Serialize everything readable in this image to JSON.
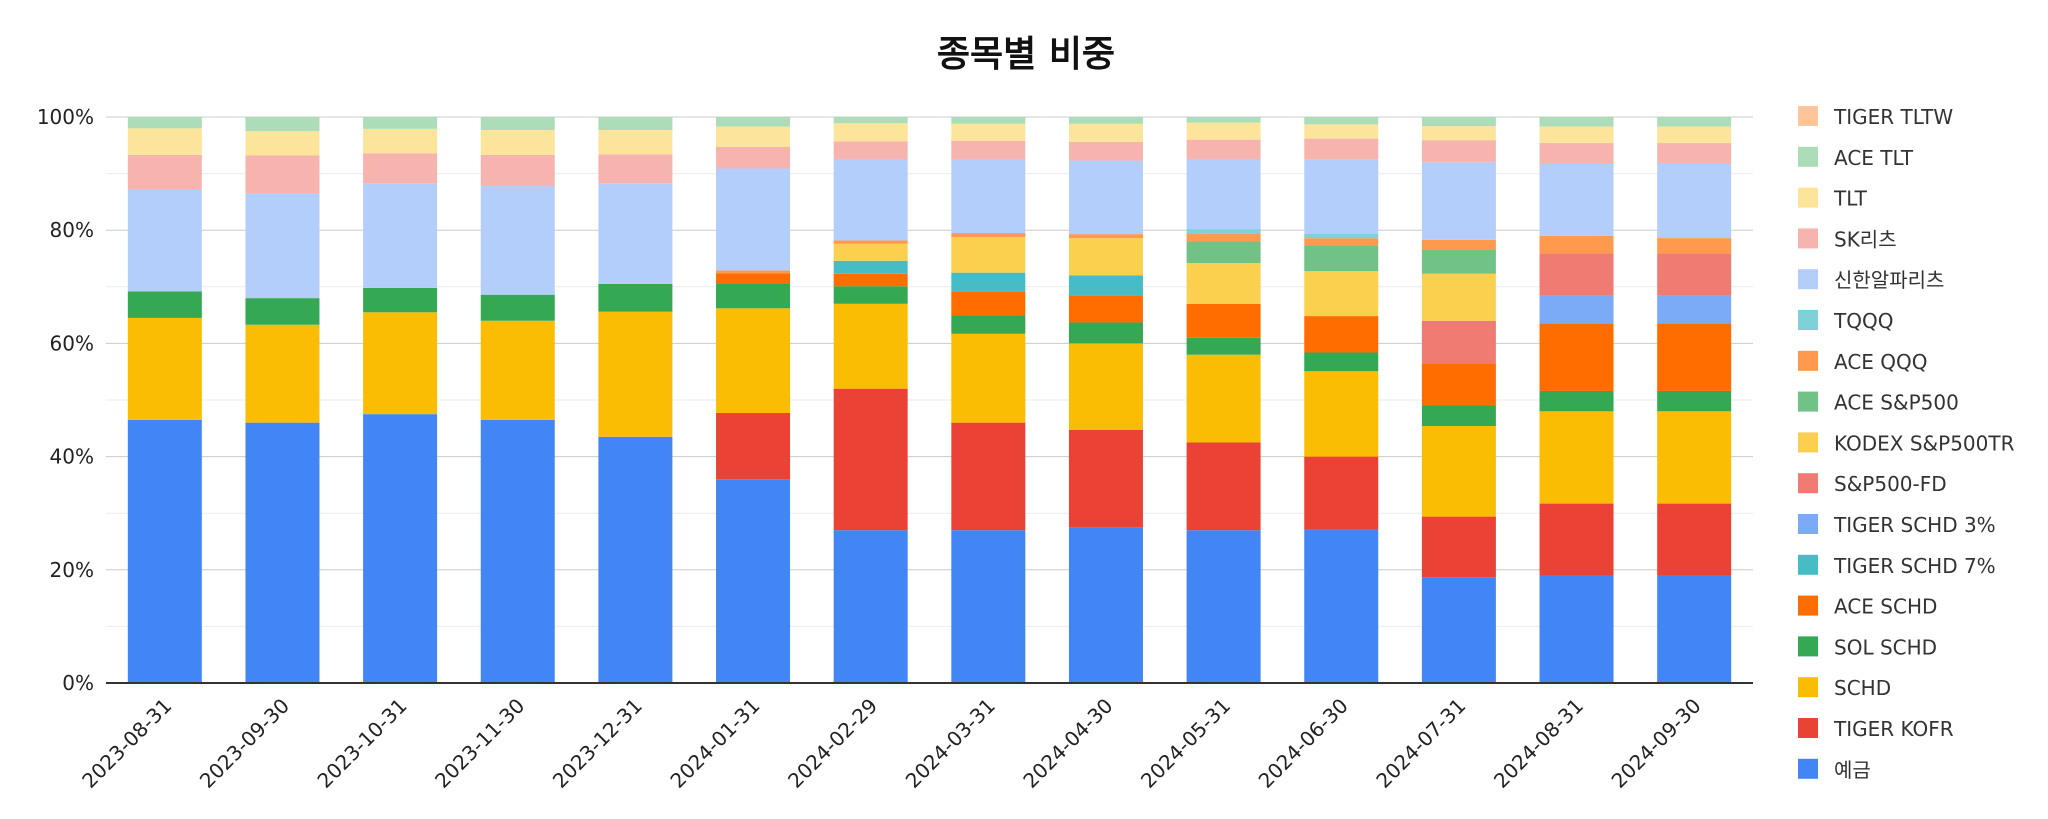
{
  "chart_data": {
    "type": "bar",
    "stacked": true,
    "percent_stacked": true,
    "title": "종목별 비중",
    "ylim": [
      0,
      100
    ],
    "yticks": [
      "0%",
      "20%",
      "40%",
      "60%",
      "80%",
      "100%"
    ],
    "grid": true,
    "legend_position": "right",
    "categories": [
      "2023-08-31",
      "2023-09-30",
      "2023-10-31",
      "2023-11-30",
      "2023-12-31",
      "2024-01-31",
      "2024-02-29",
      "2024-03-31",
      "2024-04-30",
      "2024-05-31",
      "2024-06-30",
      "2024-07-31",
      "2024-08-31",
      "2024-09-30"
    ],
    "series": [
      {
        "name": "예금",
        "color": "#4285F4",
        "values": [
          46.5,
          46.0,
          47.5,
          46.5,
          43.5,
          36.0,
          27.0,
          27.0,
          27.5,
          27.0,
          27.0,
          18.7,
          19.0,
          19.0
        ]
      },
      {
        "name": "TIGER KOFR",
        "color": "#EA4335",
        "values": [
          0,
          0,
          0,
          0,
          0,
          11.7,
          25.0,
          19.0,
          17.2,
          15.5,
          12.8,
          10.7,
          12.7,
          12.7
        ]
      },
      {
        "name": "SCHD",
        "color": "#FBBC04",
        "values": [
          18.0,
          17.3,
          18.0,
          17.5,
          22.1,
          18.5,
          15.0,
          15.7,
          15.3,
          15.5,
          15.0,
          16.0,
          16.3,
          16.3
        ]
      },
      {
        "name": "SOL SCHD",
        "color": "#34A853",
        "values": [
          4.7,
          4.7,
          4.3,
          4.6,
          4.9,
          4.4,
          3.1,
          3.3,
          3.7,
          3.0,
          3.3,
          3.7,
          3.6,
          3.6
        ]
      },
      {
        "name": "ACE SCHD",
        "color": "#FF6D01",
        "values": [
          0,
          0,
          0,
          0,
          0,
          1.8,
          2.2,
          4.2,
          4.8,
          6.0,
          6.4,
          7.4,
          11.9,
          11.9
        ]
      },
      {
        "name": "TIGER SCHD 7%",
        "color": "#46BDC6",
        "values": [
          0,
          0,
          0,
          0,
          0,
          0,
          2.3,
          3.3,
          3.5,
          0,
          0,
          0,
          0,
          0
        ]
      },
      {
        "name": "TIGER SCHD 3%",
        "color": "#7BAAF7",
        "values": [
          0,
          0,
          0,
          0,
          0,
          0,
          0,
          0,
          0,
          0,
          0,
          0,
          4.9,
          4.9
        ]
      },
      {
        "name": "S&P500-FD",
        "color": "#F07B72",
        "values": [
          0,
          0,
          0,
          0,
          0,
          0,
          0,
          0,
          0,
          0,
          0,
          7.5,
          7.5,
          7.5
        ]
      },
      {
        "name": "KODEX S&P500TR",
        "color": "#FCD04F",
        "values": [
          0,
          0,
          0,
          0,
          0,
          0,
          3.0,
          6.3,
          6.6,
          7.2,
          7.9,
          8.3,
          0,
          0
        ]
      },
      {
        "name": "ACE S&P500",
        "color": "#71C287",
        "values": [
          0,
          0,
          0,
          0,
          0,
          0,
          0,
          0,
          0,
          3.8,
          4.5,
          4.2,
          0,
          0
        ]
      },
      {
        "name": "ACE QQQ",
        "color": "#FF994D",
        "values": [
          0,
          0,
          0,
          0,
          0,
          0.5,
          0.6,
          0.7,
          0.7,
          1.4,
          1.3,
          1.8,
          3.1,
          2.7
        ]
      },
      {
        "name": "TQQQ",
        "color": "#7ED1D7",
        "values": [
          0,
          0,
          0,
          0,
          0,
          0,
          0,
          0,
          0,
          0.8,
          0.8,
          0,
          0,
          0
        ]
      },
      {
        "name": "신한알파리츠",
        "color": "#B3CEFB",
        "values": [
          18.0,
          18.5,
          18.4,
          19.2,
          17.8,
          18.0,
          14.3,
          13.0,
          13.0,
          12.3,
          13.1,
          13.7,
          12.7,
          13.1
        ]
      },
      {
        "name": "SK리츠",
        "color": "#F7B4AE",
        "values": [
          6.1,
          6.7,
          5.4,
          5.5,
          5.1,
          3.8,
          3.2,
          3.3,
          3.3,
          3.5,
          3.6,
          3.9,
          3.7,
          3.7
        ]
      },
      {
        "name": "TLT",
        "color": "#FDE49B",
        "values": [
          4.7,
          4.3,
          4.3,
          4.4,
          4.3,
          3.6,
          3.2,
          3.0,
          3.2,
          3.0,
          2.5,
          2.5,
          2.9,
          2.9
        ]
      },
      {
        "name": "ACE TLT",
        "color": "#ADDCB9",
        "values": [
          2.0,
          2.5,
          2.1,
          2.3,
          2.3,
          1.7,
          1.1,
          1.2,
          1.2,
          1.0,
          1.3,
          1.6,
          1.7,
          1.7
        ]
      },
      {
        "name": "TIGER TLTW",
        "color": "#FFC599",
        "values": [
          0,
          0,
          0,
          0,
          0,
          0,
          0,
          0,
          0,
          0,
          0,
          0,
          0,
          0
        ]
      }
    ]
  }
}
